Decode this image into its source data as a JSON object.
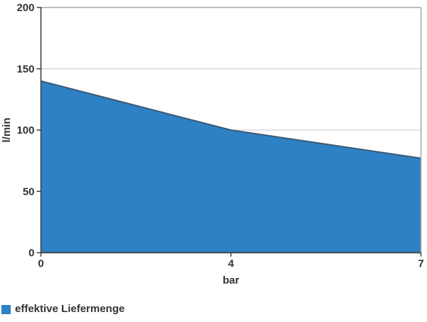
{
  "chart_data": {
    "type": "area",
    "x": [
      "0",
      "4",
      "7"
    ],
    "series": [
      {
        "name": "effektive Liefermenge",
        "values": [
          140,
          100,
          77
        ]
      }
    ],
    "title": "",
    "xlabel": "bar",
    "ylabel": "l/min",
    "ylim": [
      0,
      200
    ],
    "yticks": [
      0,
      50,
      100,
      150,
      200
    ],
    "x_axis_mode": "categorical-equal-spacing",
    "grid": "horizontal",
    "legend_position": "bottom-left",
    "colors": {
      "area_fill": "#2e81c4",
      "area_line": "#3c5a76",
      "grid": "#c9c9c9",
      "border": "#a8a8a8",
      "axis": "#404040",
      "text": "#333333"
    }
  },
  "legend": {
    "label": "effektive Liefermenge"
  }
}
